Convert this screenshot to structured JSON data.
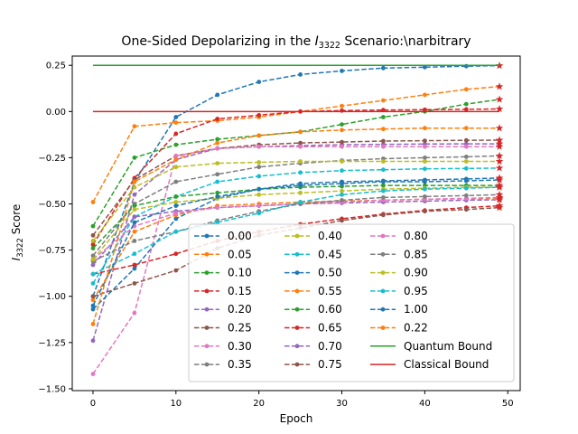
{
  "chart_data": {
    "type": "line",
    "title": "One-Sided Depolarizing in the I3322 Scenario:\\narbitrary",
    "title_prefix": "One-Sided Depolarizing in the ",
    "title_symbol": "I",
    "title_subscript": "3322",
    "title_suffix": " Scenario:\\narbitrary",
    "xlabel": "Epoch",
    "ylabel": "I3322 Score",
    "ylabel_symbol": "I",
    "ylabel_subscript": "3322",
    "ylabel_suffix": " Score",
    "xlim": [
      -2.5,
      51.5
    ],
    "ylim": [
      -1.51,
      0.3
    ],
    "xticks": [
      0,
      10,
      20,
      30,
      40,
      50
    ],
    "xtick_labels": [
      "0",
      "10",
      "20",
      "30",
      "40",
      "50"
    ],
    "yticks": [
      -1.5,
      -1.25,
      -1.0,
      -0.75,
      -0.5,
      -0.25,
      0.0,
      0.25
    ],
    "ytick_labels": [
      "−1.50",
      "−1.25",
      "−1.00",
      "−0.75",
      "−0.50",
      "−0.25",
      "0.00",
      "0.25"
    ],
    "x": [
      0,
      5,
      10,
      15,
      20,
      25,
      30,
      35,
      40,
      45,
      49
    ],
    "legend_position": "lower-right",
    "grid": false,
    "series": [
      {
        "name": "0.00",
        "color": "#1f77b4",
        "values": [
          -1.0,
          -0.38,
          -0.03,
          0.09,
          0.16,
          0.2,
          0.22,
          0.235,
          0.24,
          0.245,
          0.248
        ]
      },
      {
        "name": "0.05",
        "color": "#ff7f0e",
        "values": [
          -0.49,
          -0.08,
          -0.06,
          -0.05,
          -0.03,
          0.0,
          0.03,
          0.06,
          0.09,
          0.12,
          0.135
        ]
      },
      {
        "name": "0.10",
        "color": "#2ca02c",
        "values": [
          -0.62,
          -0.25,
          -0.18,
          -0.15,
          -0.13,
          -0.11,
          -0.07,
          -0.03,
          0.0,
          0.04,
          0.065
        ]
      },
      {
        "name": "0.15",
        "color": "#d62728",
        "values": [
          -0.72,
          -0.36,
          -0.12,
          -0.04,
          -0.02,
          0.0,
          0.005,
          0.008,
          0.01,
          0.012,
          0.014
        ]
      },
      {
        "name": "0.20",
        "color": "#9467bd",
        "values": [
          -1.24,
          -0.45,
          -0.26,
          -0.2,
          -0.19,
          -0.185,
          -0.18,
          -0.178,
          -0.176,
          -0.175,
          -0.175
        ]
      },
      {
        "name": "0.25",
        "color": "#8c564b",
        "values": [
          -0.67,
          -0.37,
          -0.24,
          -0.2,
          -0.18,
          -0.17,
          -0.165,
          -0.16,
          -0.158,
          -0.156,
          -0.155
        ]
      },
      {
        "name": "0.30",
        "color": "#e377c2",
        "values": [
          -1.42,
          -1.09,
          -0.24,
          -0.2,
          -0.19,
          -0.19,
          -0.19,
          -0.19,
          -0.19,
          -0.19,
          -0.19
        ]
      },
      {
        "name": "0.35",
        "color": "#7f7f7f",
        "values": [
          -0.78,
          -0.5,
          -0.38,
          -0.34,
          -0.3,
          -0.28,
          -0.265,
          -0.255,
          -0.25,
          -0.245,
          -0.24
        ]
      },
      {
        "name": "0.40",
        "color": "#bcbd22",
        "values": [
          -0.7,
          -0.41,
          -0.3,
          -0.28,
          -0.275,
          -0.27,
          -0.27,
          -0.27,
          -0.27,
          -0.27,
          -0.27
        ]
      },
      {
        "name": "0.45",
        "color": "#17becf",
        "values": [
          -0.93,
          -0.57,
          -0.46,
          -0.38,
          -0.35,
          -0.33,
          -0.32,
          -0.315,
          -0.31,
          -0.308,
          -0.306
        ]
      },
      {
        "name": "0.50",
        "color": "#1f77b4",
        "values": [
          -1.07,
          -0.85,
          -0.58,
          -0.47,
          -0.42,
          -0.39,
          -0.38,
          -0.375,
          -0.37,
          -0.365,
          -0.36
        ]
      },
      {
        "name": "0.55",
        "color": "#ff7f0e",
        "values": [
          -1.02,
          -0.65,
          -0.56,
          -0.51,
          -0.5,
          -0.49,
          -0.485,
          -0.48,
          -0.475,
          -0.472,
          -0.47
        ]
      },
      {
        "name": "0.60",
        "color": "#2ca02c",
        "values": [
          -0.74,
          -0.51,
          -0.46,
          -0.44,
          -0.42,
          -0.41,
          -0.405,
          -0.4,
          -0.4,
          -0.4,
          -0.4
        ]
      },
      {
        "name": "0.65",
        "color": "#d62728",
        "values": [
          -0.88,
          -0.83,
          -0.77,
          -0.7,
          -0.65,
          -0.61,
          -0.58,
          -0.555,
          -0.535,
          -0.52,
          -0.51
        ]
      },
      {
        "name": "0.70",
        "color": "#9467bd",
        "values": [
          -0.83,
          -0.57,
          -0.54,
          -0.52,
          -0.51,
          -0.5,
          -0.495,
          -0.49,
          -0.485,
          -0.48,
          -0.478
        ]
      },
      {
        "name": "0.75",
        "color": "#8c564b",
        "values": [
          -1.0,
          -0.93,
          -0.86,
          -0.74,
          -0.67,
          -0.63,
          -0.59,
          -0.56,
          -0.54,
          -0.53,
          -0.52
        ]
      },
      {
        "name": "0.80",
        "color": "#e377c2",
        "values": [
          -0.8,
          -0.62,
          -0.55,
          -0.52,
          -0.51,
          -0.5,
          -0.49,
          -0.48,
          -0.475,
          -0.47,
          -0.465
        ]
      },
      {
        "name": "0.85",
        "color": "#7f7f7f",
        "values": [
          -0.81,
          -0.7,
          -0.65,
          -0.59,
          -0.54,
          -0.5,
          -0.48,
          -0.465,
          -0.46,
          -0.455,
          -0.45
        ]
      },
      {
        "name": "0.90",
        "color": "#bcbd22",
        "values": [
          -0.8,
          -0.53,
          -0.49,
          -0.47,
          -0.45,
          -0.44,
          -0.43,
          -0.42,
          -0.415,
          -0.41,
          -0.41
        ]
      },
      {
        "name": "0.95",
        "color": "#17becf",
        "values": [
          -0.88,
          -0.77,
          -0.65,
          -0.6,
          -0.55,
          -0.49,
          -0.45,
          -0.43,
          -0.42,
          -0.415,
          -0.41
        ]
      },
      {
        "name": "1.00",
        "color": "#1f77b4",
        "values": [
          -1.05,
          -0.6,
          -0.51,
          -0.46,
          -0.42,
          -0.4,
          -0.39,
          -0.38,
          -0.38,
          -0.375,
          -0.37
        ]
      },
      {
        "name": "0.22",
        "color": "#ff7f0e",
        "values": [
          -1.15,
          -0.38,
          -0.26,
          -0.17,
          -0.13,
          -0.11,
          -0.1,
          -0.095,
          -0.09,
          -0.09,
          -0.09
        ]
      }
    ],
    "bounds": [
      {
        "name": "Quantum Bound",
        "color": "#2ca02c",
        "value": 0.25
      },
      {
        "name": "Classical Bound",
        "color": "#d62728",
        "value": 0.0
      }
    ]
  }
}
